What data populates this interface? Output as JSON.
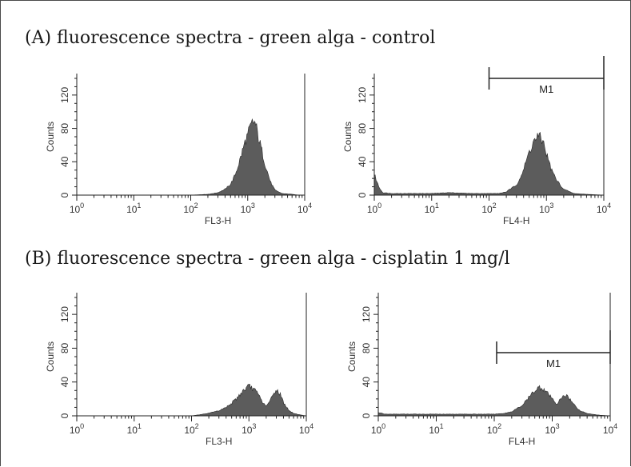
{
  "figure": {
    "title_a": "(A) fluorescence spectra - green alga - control",
    "title_b": "(B) fluorescence spectra - green alga - cisplatin 1 mg/l"
  },
  "chart_data": [
    {
      "type": "area",
      "section": "A",
      "xlabel": "FL3-H",
      "ylabel": "Counts",
      "x_scale": "log",
      "xlim": [
        1,
        10000
      ],
      "ylim": [
        0,
        140
      ],
      "x_tick_labels": [
        "10^0",
        "10^1",
        "10^2",
        "10^3",
        "10^4"
      ],
      "y_ticks": [
        0,
        40,
        80,
        120
      ],
      "fill_color": "#5c5c5c",
      "gate": null,
      "series": [
        {
          "x": [
            1,
            100,
            200,
            300,
            400,
            500,
            600,
            700,
            800,
            900,
            1000,
            1100,
            1200,
            1300,
            1400,
            1500,
            1700,
            2000,
            2500,
            3000,
            4000,
            6000,
            8000,
            10000
          ],
          "y": [
            0,
            0,
            1,
            3,
            7,
            13,
            24,
            38,
            52,
            64,
            72,
            80,
            86,
            88,
            83,
            72,
            58,
            38,
            16,
            6,
            2,
            1,
            0,
            0
          ]
        }
      ]
    },
    {
      "type": "area",
      "section": "A",
      "xlabel": "FL4-H",
      "ylabel": "Counts",
      "x_scale": "log",
      "xlim": [
        1,
        10000
      ],
      "ylim": [
        0,
        140
      ],
      "x_tick_labels": [
        "10^0",
        "10^1",
        "10^2",
        "10^3",
        "10^4"
      ],
      "y_ticks": [
        0,
        40,
        80,
        120
      ],
      "fill_color": "#5c5c5c",
      "gate": {
        "label": "M1",
        "x_from": 100,
        "x_to": 10000
      },
      "series": [
        {
          "x": [
            1,
            1.2,
            1.4,
            2,
            5,
            10,
            20,
            50,
            100,
            150,
            200,
            300,
            400,
            500,
            600,
            700,
            800,
            900,
            1000,
            1200,
            1500,
            2000,
            3000,
            5000,
            10000
          ],
          "y": [
            25,
            10,
            3,
            2,
            2,
            2,
            3,
            2,
            2,
            2,
            4,
            12,
            30,
            52,
            64,
            70,
            68,
            62,
            50,
            32,
            18,
            7,
            2,
            1,
            0
          ]
        }
      ]
    },
    {
      "type": "area",
      "section": "B",
      "xlabel": "FL3-H",
      "ylabel": "Counts",
      "x_scale": "log",
      "xlim": [
        1,
        10000
      ],
      "ylim": [
        0,
        140
      ],
      "x_tick_labels": [
        "10^0",
        "10^1",
        "10^2",
        "10^3",
        "10^4"
      ],
      "y_ticks": [
        0,
        40,
        80,
        120
      ],
      "fill_color": "#5c5c5c",
      "gate": null,
      "series": [
        {
          "x": [
            1,
            100,
            200,
            300,
            400,
            500,
            600,
            800,
            1000,
            1200,
            1500,
            1800,
            2100,
            2500,
            3000,
            3500,
            4000,
            5000,
            6000,
            8000,
            10000
          ],
          "y": [
            0,
            0,
            3,
            6,
            10,
            15,
            20,
            30,
            35,
            32,
            24,
            14,
            12,
            22,
            31,
            26,
            16,
            6,
            3,
            1,
            0
          ]
        }
      ]
    },
    {
      "type": "area",
      "section": "B",
      "xlabel": "FL4-H",
      "ylabel": "Counts",
      "x_scale": "log",
      "xlim": [
        1,
        10000
      ],
      "ylim": [
        0,
        140
      ],
      "x_tick_labels": [
        "10^0",
        "10^1",
        "10^2",
        "10^3",
        "10^4"
      ],
      "y_ticks": [
        0,
        40,
        80,
        120
      ],
      "fill_color": "#5c5c5c",
      "gate": {
        "label": "M1",
        "x_from": 110,
        "x_to": 10000
      },
      "series": [
        {
          "x": [
            1,
            1.3,
            2,
            5,
            10,
            20,
            50,
            100,
            150,
            200,
            300,
            400,
            500,
            600,
            700,
            800,
            1000,
            1200,
            1500,
            1800,
            2200,
            3000,
            4000,
            6000,
            10000
          ],
          "y": [
            4,
            2,
            2,
            2,
            2,
            2,
            2,
            2,
            3,
            5,
            12,
            22,
            30,
            34,
            32,
            28,
            20,
            14,
            22,
            25,
            16,
            6,
            3,
            1,
            0
          ]
        }
      ]
    }
  ]
}
